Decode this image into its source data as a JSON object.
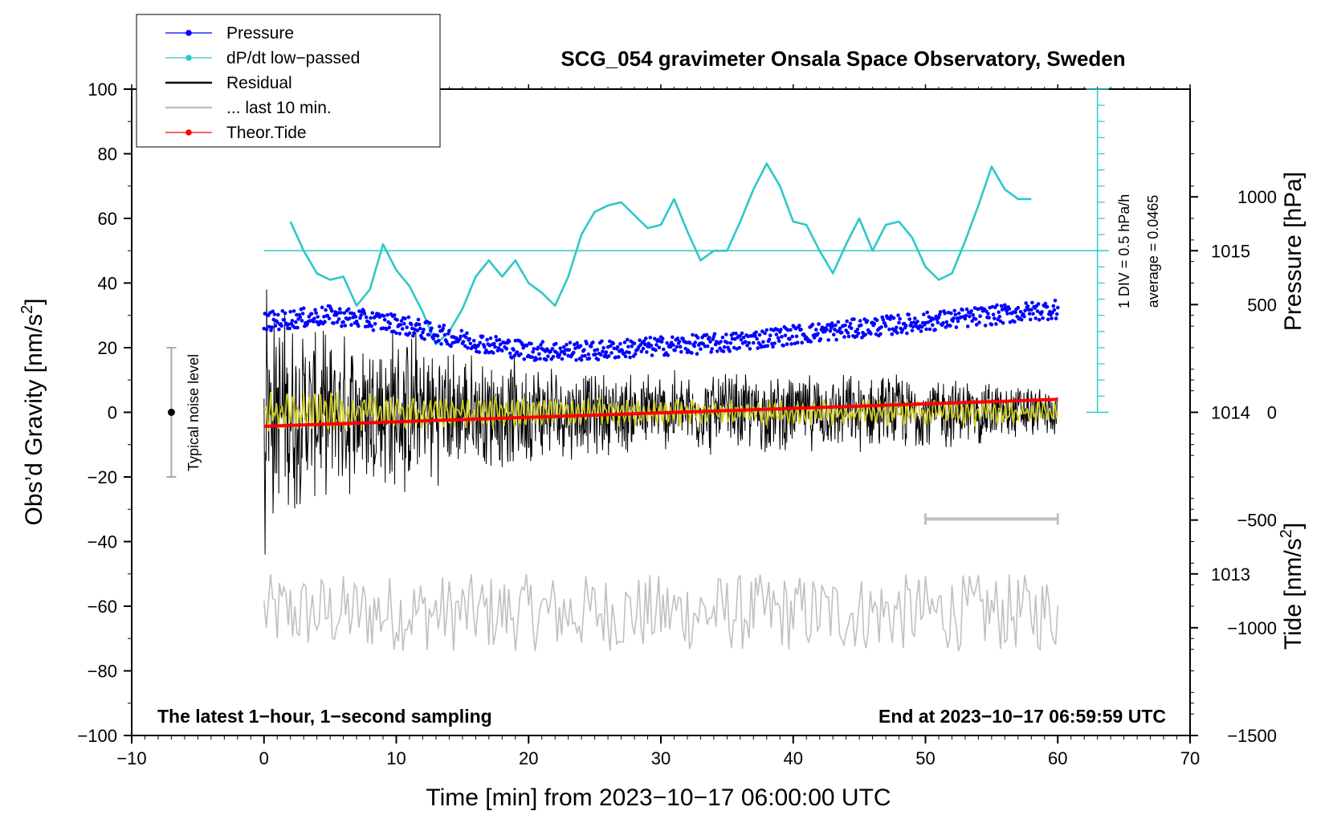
{
  "chart_data": {
    "type": "line",
    "title": "SCG_054 gravimeter Onsala Space Observatory, Sweden",
    "xlabel": "Time [min] from 2023−10−17 06:00:00 UTC",
    "ylabel_left_main": "Obs’d Gravity [nm/s",
    "ylabel_left_sup": "2",
    "ylabel_left_end": "]",
    "ylabel_right_pressure": "Pressure [hPa]",
    "ylabel_right_tide_main": "Tide [nm/s",
    "ylabel_right_tide_sup": "2",
    "ylabel_right_tide_end": "]",
    "xlim": [
      -10,
      70
    ],
    "ylim": [
      -100,
      100
    ],
    "pressure_ylim": [
      1012,
      1016
    ],
    "tide_ylim": [
      -1500,
      1500
    ],
    "x_ticks": [
      "−10",
      "0",
      "10",
      "20",
      "30",
      "40",
      "50",
      "60",
      "70"
    ],
    "x_tick_values": [
      -10,
      0,
      10,
      20,
      30,
      40,
      50,
      60,
      70
    ],
    "y_ticks": [
      "100",
      "80",
      "60",
      "40",
      "20",
      "0",
      "−20",
      "−40",
      "−60",
      "−80",
      "−100"
    ],
    "y_tick_values": [
      100,
      80,
      60,
      40,
      20,
      0,
      -20,
      -40,
      -60,
      -80,
      -100
    ],
    "pressure_ticks": [
      "1015",
      "1014",
      "1013"
    ],
    "pressure_tick_values": [
      1015,
      1014,
      1013
    ],
    "tide_ticks": [
      "1000",
      "500",
      "0",
      "−500",
      "−1000",
      "−1500"
    ],
    "tide_tick_values": [
      1000,
      500,
      0,
      -500,
      -1000,
      -1500
    ],
    "legend": [
      {
        "label": "Pressure",
        "color": "#0000ff",
        "marker": true
      },
      {
        "label": "dP/dt low−passed",
        "color": "#2ec8c8",
        "marker": true
      },
      {
        "label": "Residual",
        "color": "#000000",
        "marker": false
      },
      {
        "label": "... last 10 min.",
        "color": "#c0c0c0",
        "marker": false
      },
      {
        "label": "Theor.Tide",
        "color": "#ff0000",
        "marker": true
      }
    ],
    "series": [
      {
        "name": "Pressure",
        "units": "hPa",
        "color": "#0000ff",
        "x": [
          0,
          5,
          10,
          15,
          20,
          25,
          30,
          35,
          40,
          45,
          50,
          55,
          60
        ],
        "values": [
          1014.56,
          1014.6,
          1014.55,
          1014.45,
          1014.38,
          1014.38,
          1014.41,
          1014.43,
          1014.48,
          1014.52,
          1014.56,
          1014.6,
          1014.64
        ]
      },
      {
        "name": "dP/dt low-passed",
        "units": "gravity axis (1 DIV = 0.5 hPa/h)",
        "color": "#2ec8c8",
        "x": [
          2,
          3,
          4,
          5,
          6,
          7,
          8,
          9,
          10,
          11,
          12,
          13,
          14,
          15,
          16,
          17,
          18,
          19,
          20,
          21,
          22,
          23,
          24,
          25,
          26,
          27,
          28,
          29,
          30,
          31,
          32,
          33,
          34,
          35,
          36,
          37,
          38,
          39,
          40,
          41,
          42,
          43,
          44,
          45,
          46,
          47,
          48,
          49,
          50,
          51,
          52,
          53,
          54,
          55,
          56,
          57,
          58
        ],
        "values": [
          59,
          50,
          43,
          41,
          42,
          33,
          38,
          52,
          44,
          39,
          31,
          21,
          25,
          32,
          42,
          47,
          42,
          47,
          40,
          37,
          33,
          42,
          55,
          62,
          64,
          65,
          61,
          57,
          58,
          66,
          56,
          47,
          50,
          50,
          59,
          69,
          77,
          70,
          59,
          58,
          50,
          43,
          52,
          60,
          50,
          58,
          59,
          54,
          45,
          41,
          43,
          53,
          64,
          76,
          69,
          66,
          66
        ]
      },
      {
        "name": "Residual",
        "units": "nm/s2",
        "color": "#000000",
        "x": [
          0,
          5,
          10,
          15,
          20,
          25,
          30,
          35,
          40,
          45,
          50,
          55,
          60
        ],
        "envelope": [
          38,
          26,
          30,
          20,
          18,
          14,
          14,
          14,
          13,
          13,
          13,
          11,
          8
        ],
        "min": -44,
        "max": 38
      },
      {
        "name": "Residual low-pass",
        "units": "nm/s2",
        "color": "#cccc22",
        "x": [
          0,
          30,
          60
        ],
        "envelope": [
          6,
          4,
          4
        ]
      },
      {
        "name": "... last 10 min.",
        "units": "nm/s2 (offset)",
        "color": "#c0c0c0",
        "x": [
          0,
          60
        ],
        "center": -62,
        "envelope": 12
      },
      {
        "name": "Theor.Tide",
        "units": "nm/s2 (tide axis)",
        "color": "#ff0000",
        "x": [
          0,
          60
        ],
        "values": [
          -65,
          60
        ]
      }
    ],
    "noise_bar": {
      "label": "Typical noise level",
      "x": -7,
      "y_low": -20,
      "y_high": 20
    },
    "ten_min_bar": {
      "x_start": 50,
      "x_end": 60,
      "y": -33
    },
    "pressure_scale": {
      "label_line1": "1 DIV = 0.5 hPa/h",
      "label_line2": "average = 0.0465",
      "x": 63,
      "y_baseline": 50,
      "y_low": 0,
      "y_high": 100,
      "minor_ticks": [
        5,
        10,
        15,
        20,
        25,
        30,
        35,
        40,
        45,
        55,
        60,
        65,
        70,
        75,
        80,
        85,
        90,
        95
      ]
    },
    "annotations": {
      "bottom_left": "The latest 1−hour, 1−second sampling",
      "bottom_right": "End at 2023−10−17 06:59:59 UTC"
    }
  }
}
